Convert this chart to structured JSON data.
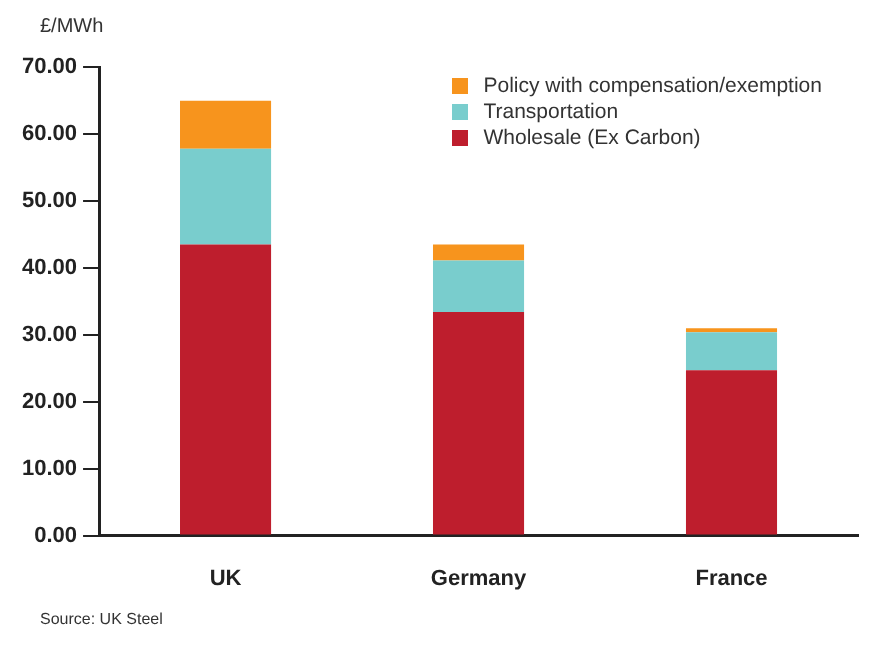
{
  "chart_data": {
    "type": "bar",
    "stacked": true,
    "ylabel": "£/MWh",
    "categories": [
      "UK",
      "Germany",
      "France"
    ],
    "series": [
      {
        "name": "Wholesale (Ex Carbon)",
        "color": "#be1e2d",
        "values": [
          43.5,
          33.4,
          24.7
        ]
      },
      {
        "name": "Transportation",
        "color": "#79cdcd",
        "values": [
          14.3,
          7.7,
          5.7
        ]
      },
      {
        "name": "Policy with compensation/exemption",
        "color": "#f7941d",
        "values": [
          7.2,
          2.4,
          0.6
        ]
      }
    ],
    "ylim": [
      0,
      70
    ],
    "yticks": [
      {
        "value": 0,
        "label": "0.00"
      },
      {
        "value": 10,
        "label": "10.00"
      },
      {
        "value": 20,
        "label": "20.00"
      },
      {
        "value": 30,
        "label": "30.00"
      },
      {
        "value": 40,
        "label": "40.00"
      },
      {
        "value": 50,
        "label": "50.00"
      },
      {
        "value": 60,
        "label": "60.00"
      },
      {
        "value": 70,
        "label": "70.00"
      }
    ],
    "grid": false,
    "legend": "top right",
    "annotations": [
      "Source: UK Steel"
    ]
  }
}
